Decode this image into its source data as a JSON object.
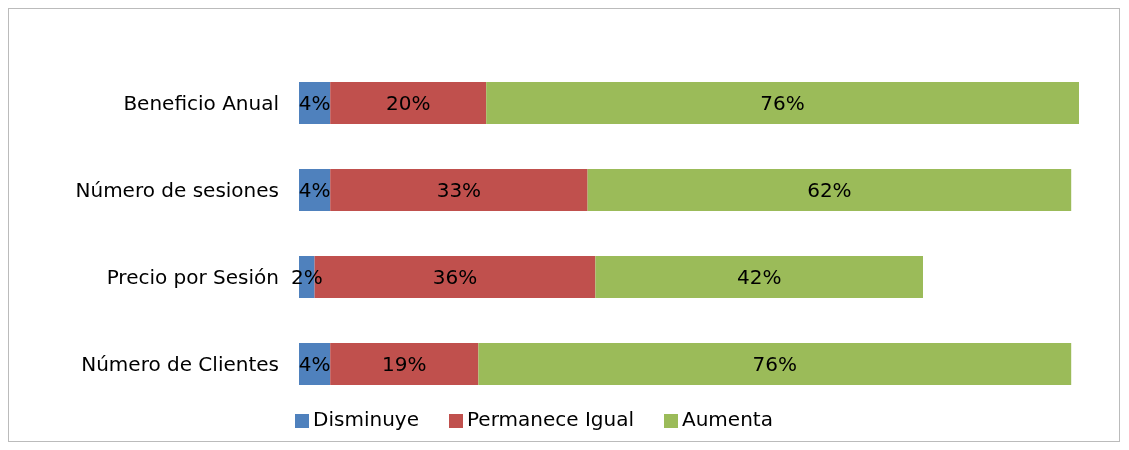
{
  "chart_data": {
    "type": "bar",
    "orientation": "horizontal",
    "stacked": true,
    "categories": [
      "Beneficio Anual",
      "Número de sesiones",
      "Precio por Sesión",
      "Número de Clientes"
    ],
    "series": [
      {
        "name": "Disminuye",
        "color": "#4f81bd",
        "values": [
          4,
          4,
          2,
          4
        ],
        "value_labels": [
          "4%",
          "4%",
          "2%",
          "4%"
        ]
      },
      {
        "name": "Permanece Igual",
        "color": "#c0504d",
        "values": [
          20,
          33,
          36,
          19
        ],
        "value_labels": [
          "20%",
          "33%",
          "36%",
          "19%"
        ]
      },
      {
        "name": "Aumenta",
        "color": "#9bbb59",
        "values": [
          76,
          62,
          42,
          76
        ],
        "value_labels": [
          "76%",
          "62%",
          "42%",
          "76%"
        ]
      }
    ],
    "legend": "bottom",
    "grid": false
  }
}
